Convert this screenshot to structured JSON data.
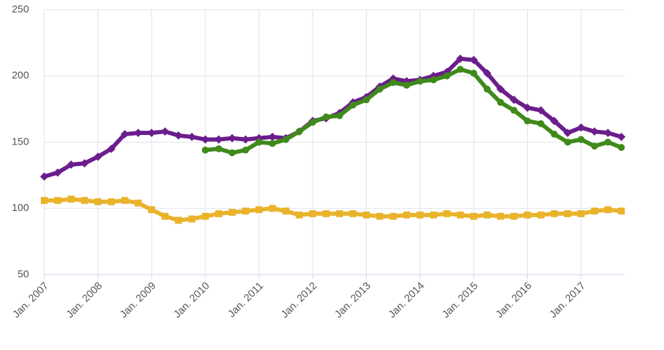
{
  "chart_data": {
    "type": "line",
    "x": [
      2007,
      2007.25,
      2007.5,
      2007.75,
      2008,
      2008.25,
      2008.5,
      2008.75,
      2009,
      2009.25,
      2009.5,
      2009.75,
      2010,
      2010.25,
      2010.5,
      2010.75,
      2011,
      2011.25,
      2011.5,
      2011.75,
      2012,
      2012.25,
      2012.5,
      2012.75,
      2013,
      2013.25,
      2013.5,
      2013.75,
      2014,
      2014.25,
      2014.5,
      2014.75,
      2015,
      2015.25,
      2015.5,
      2015.75,
      2016,
      2016.25,
      2016.5,
      2016.75,
      2017,
      2017.25,
      2017.5,
      2017.75
    ],
    "series": [
      {
        "color": "#e9b32b",
        "marker": "square",
        "values": [
          106,
          106,
          107,
          106,
          105,
          105,
          106,
          104,
          99,
          94,
          91,
          92,
          94,
          96,
          97,
          98,
          99,
          100,
          98,
          95,
          96,
          96,
          96,
          96,
          95,
          94,
          94,
          95,
          95,
          95,
          96,
          95,
          94,
          95,
          94,
          94,
          95,
          95,
          96,
          96,
          96,
          98,
          99,
          98
        ]
      },
      {
        "color": "#6b1d8c",
        "marker": "diamond",
        "values": [
          124,
          127,
          133,
          134,
          139,
          145,
          156,
          157,
          157,
          158,
          155,
          154,
          152,
          152,
          153,
          152,
          153,
          154,
          153,
          158,
          166,
          168,
          172,
          180,
          184,
          192,
          198,
          196,
          197,
          200,
          203,
          213,
          212,
          202,
          190,
          182,
          176,
          174,
          166,
          157,
          161,
          158,
          157,
          154
        ]
      },
      {
        "color": "#3f8a1b",
        "marker": "circle",
        "values": [
          null,
          null,
          null,
          null,
          null,
          null,
          null,
          null,
          null,
          null,
          null,
          null,
          144,
          145,
          142,
          144,
          150,
          149,
          152,
          158,
          165,
          169,
          170,
          178,
          182,
          190,
          195,
          193,
          196,
          197,
          200,
          205,
          202,
          190,
          180,
          174,
          166,
          164,
          156,
          150,
          152,
          147,
          150,
          146
        ]
      }
    ],
    "xlim": [
      2007,
      2017.81
    ],
    "ylim": [
      50,
      250
    ],
    "xticks": [
      {
        "value": 2007,
        "label": "Jan. 2007"
      },
      {
        "value": 2008,
        "label": "Jan. 2008"
      },
      {
        "value": 2009,
        "label": "Jan. 2009"
      },
      {
        "value": 2010,
        "label": "Jan. 2010"
      },
      {
        "value": 2011,
        "label": "Jan. 2011"
      },
      {
        "value": 2012,
        "label": "Jan. 2012"
      },
      {
        "value": 2013,
        "label": "Jan. 2013"
      },
      {
        "value": 2014,
        "label": "Jan. 2014"
      },
      {
        "value": 2015,
        "label": "Jan. 2015"
      },
      {
        "value": 2016,
        "label": "Jan. 2016"
      },
      {
        "value": 2017,
        "label": "Jan. 2017"
      }
    ],
    "yticks": [
      50,
      100,
      150,
      200,
      250
    ],
    "grid": true
  }
}
